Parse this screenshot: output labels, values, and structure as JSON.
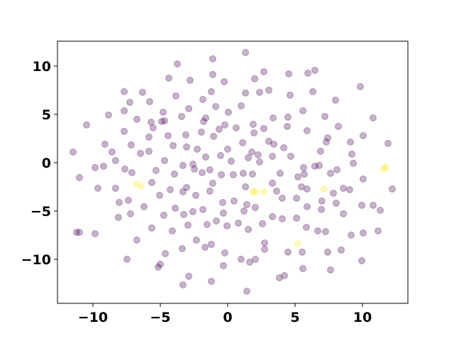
{
  "chart_data": {
    "type": "scatter",
    "xlim": [
      -12.63,
      13.37
    ],
    "ylim": [
      -14.56,
      12.57
    ],
    "xticks": [
      {
        "value": -10,
        "label": "−10"
      },
      {
        "value": -5,
        "label": "−5"
      },
      0,
      5,
      10
    ],
    "yticks": [
      {
        "value": -10,
        "label": "−10"
      },
      {
        "value": -5,
        "label": "−5"
      },
      0,
      5,
      10
    ],
    "opacity": 0.3,
    "series": [
      {
        "color": "#440154",
        "x": [
          1.32,
          -1.11,
          -3.74,
          -4.37,
          -2.79,
          -1.11,
          -0.26,
          2.0,
          2.68,
          4.53,
          5.95,
          6.47,
          -3.84,
          -7.68,
          -7.26,
          -6.32,
          -5.79,
          -5.68,
          -4.79,
          -4.68,
          -4.89,
          -8.84,
          -10.47,
          -7.68,
          -7.68,
          -6.74,
          -5.84,
          -7.16,
          -9.11,
          -8.58,
          -11.47,
          -9.84,
          -11.0,
          -9.21,
          -8.32,
          -7.63,
          -7.11,
          -6.47,
          -5.84,
          -5.32,
          -4.68,
          -4.05,
          -3.05,
          -2.26,
          -3.32,
          -3.95,
          -2.58,
          -2.47,
          -1.63,
          -1.32,
          -0.53,
          0,
          0.26,
          1.11,
          1.53,
          1.79,
          1.84,
          1.16,
          0.42,
          -0.47,
          -1.11,
          -1.89,
          -3.05,
          -4.26,
          -3.32,
          -2.37,
          -1.32,
          -0.37,
          0.47,
          1.42,
          1.32,
          3.32,
          3.63,
          4.05,
          5.11,
          5.47,
          5.89,
          6.99,
          7.84,
          8.58,
          9.05,
          8.05,
          8.58,
          9.95,
          10.79,
          11.32,
          12.21,
          10.05,
          9.32,
          7.63,
          8.11,
          6.47,
          6.79,
          5.63,
          4.68,
          4.16,
          3.05,
          3.42,
          3.32,
          2.26,
          2.37,
          6.89,
          7.32,
          7.42,
          8.21,
          9.11,
          9.21,
          10.05,
          11.89,
          10.79,
          9.84,
          8.0,
          7.21,
          5.89,
          4.42,
          4.47,
          3.37,
          4.63,
          5.58,
          6.32,
          3.05,
          2.37,
          1.32,
          1.0,
          0.05,
          -0.89,
          -1.21,
          -1.84,
          -1.63,
          -1.79,
          -2.89,
          -3.42,
          -0.21,
          0.63,
          1.89,
          2.68,
          1.95,
          -0.63,
          -1.05,
          -1.95,
          -3.11,
          -4.42,
          -5.53,
          -5.05,
          -5.63,
          -6.21,
          -7.37,
          -8.05,
          -8.32,
          -9.63,
          -8.11,
          -9.84,
          -11.21,
          -11.0,
          -7.21,
          -5.63,
          -4.74,
          -4.11,
          -3.89,
          -3.26,
          -2.58,
          -1.84,
          -2.95,
          -1.53,
          -0.84,
          -0.32,
          -0.05,
          0.79,
          1.53,
          1.21,
          2.05,
          2.58,
          3.32,
          4.05,
          5.11,
          5.84,
          6.68,
          7.26,
          6.95,
          9.16,
          10.05,
          11.16,
          8.42,
          7.42,
          5.53,
          4.47,
          2.74,
          2.74,
          2.05,
          1.0,
          1.63,
          -1.21,
          -1.68,
          -0.21,
          -0.32,
          -2.32,
          -3.37,
          -4.63,
          -5.0,
          -5.16,
          -2.89,
          -3.32,
          -1.21,
          1.42,
          3.84,
          4.21,
          5.58,
          7.63,
          9.95,
          -6.74,
          -7.47,
          5.89,
          3.89,
          5.21,
          5.68
        ],
        "y": [
          11.4,
          10.74,
          10.22,
          8.75,
          8.53,
          9.12,
          8.38,
          8.68,
          9.41,
          9.19,
          9.26,
          9.56,
          6.91,
          7.35,
          6.25,
          7.28,
          6.32,
          4.19,
          5.22,
          4.34,
          4.26,
          4.93,
          3.9,
          5.37,
          3.24,
          4.49,
          2.65,
          1.84,
          1.91,
          1.1,
          1.1,
          -0.51,
          -1.54,
          -0.37,
          0.22,
          -0.66,
          -1.03,
          0.96,
          1.18,
          -0.81,
          0.22,
          1.76,
          1.62,
          1.4,
          -0.29,
          -1.18,
          -0.15,
          -0.66,
          0.59,
          -0.74,
          0.74,
          1.4,
          0.15,
          2.06,
          0.51,
          1.1,
          -1.18,
          -1.1,
          -1.25,
          -1.25,
          -2.13,
          -1.03,
          -2.57,
          -2.79,
          -3.01,
          -3.38,
          -2.94,
          -4.12,
          -3.97,
          -4.34,
          -2.5,
          -2.13,
          -2.94,
          -3.68,
          -3.68,
          -2.5,
          -4.56,
          -3.97,
          -3.16,
          -2.65,
          -2.79,
          -4.19,
          -5.29,
          -4.41,
          -4.41,
          -4.93,
          -2.72,
          -1.69,
          -0.07,
          -1.1,
          -0.74,
          -0.37,
          -0.29,
          -0.51,
          0.66,
          1.54,
          2.21,
          1.91,
          0.66,
          0.81,
          0.07,
          1.18,
          2.13,
          2.57,
          3.75,
          2.13,
          0.88,
          2.79,
          1.99,
          4.63,
          7.87,
          6.47,
          4.78,
          3.31,
          3.75,
          4.71,
          4.63,
          6.99,
          5.37,
          7.35,
          7.5,
          7.28,
          7.21,
          5.88,
          5.22,
          5.81,
          7.35,
          6.54,
          4.63,
          4.26,
          5.59,
          4.78,
          3.9,
          3.6,
          3.97,
          3.53,
          3.09,
          3.46,
          2.72,
          3.16,
          2.87,
          2.79,
          3.6,
          -3.38,
          -2.06,
          -4.56,
          -3.9,
          -4.12,
          -2.65,
          -2.65,
          -5.66,
          -7.35,
          -7.21,
          -7.21,
          -5.29,
          -6.76,
          -5.44,
          -7.06,
          -4.71,
          -5.37,
          -5.07,
          -4.85,
          -6.47,
          -6.4,
          -6.03,
          -5.22,
          -6.54,
          -6.25,
          -6.91,
          -5.0,
          -4.63,
          -6.32,
          -5.59,
          -5.81,
          -5.74,
          -6.69,
          -7.06,
          -7.13,
          -4.85,
          -7.5,
          -7.28,
          -7.06,
          -9.04,
          -9.26,
          -9.26,
          -9.26,
          -8.31,
          -8.97,
          -10.0,
          -10.0,
          -10.29,
          -8.46,
          -8.75,
          -9.34,
          -10.66,
          -8.01,
          -8.9,
          -9.41,
          -10.51,
          -10.81,
          -11.76,
          -12.65,
          -12.28,
          -13.31,
          -11.91,
          -11.69,
          -10.96,
          -11.1,
          -10.15,
          -8.01,
          -10.0,
          -2.72,
          -1.1,
          -1.47,
          -1.18
        ]
      },
      {
        "color": "#fde725",
        "x": [
          -6.74,
          -6.42,
          1.89,
          2.05,
          2.68,
          7.16,
          5.21,
          11.58,
          11.74
        ],
        "y": [
          -2.21,
          -2.43,
          -3.01,
          -3.01,
          -3.01,
          -2.72,
          -8.38,
          -0.66,
          -0.44
        ]
      }
    ]
  }
}
